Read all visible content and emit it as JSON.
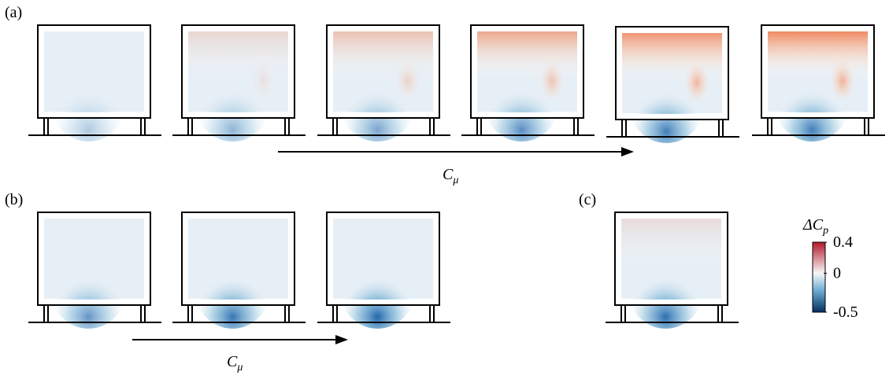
{
  "panels": {
    "a": {
      "label": "(a)",
      "arrow_label": {
        "base": "C",
        "sub": "μ"
      }
    },
    "b": {
      "label": "(b)",
      "arrow_label": {
        "base": "C",
        "sub": "μ"
      }
    },
    "c": {
      "label": "(c)"
    }
  },
  "colorbar": {
    "label": {
      "base": "ΔC",
      "sub": "p"
    },
    "ticks": [
      0.4,
      0,
      -0.5
    ]
  }
}
